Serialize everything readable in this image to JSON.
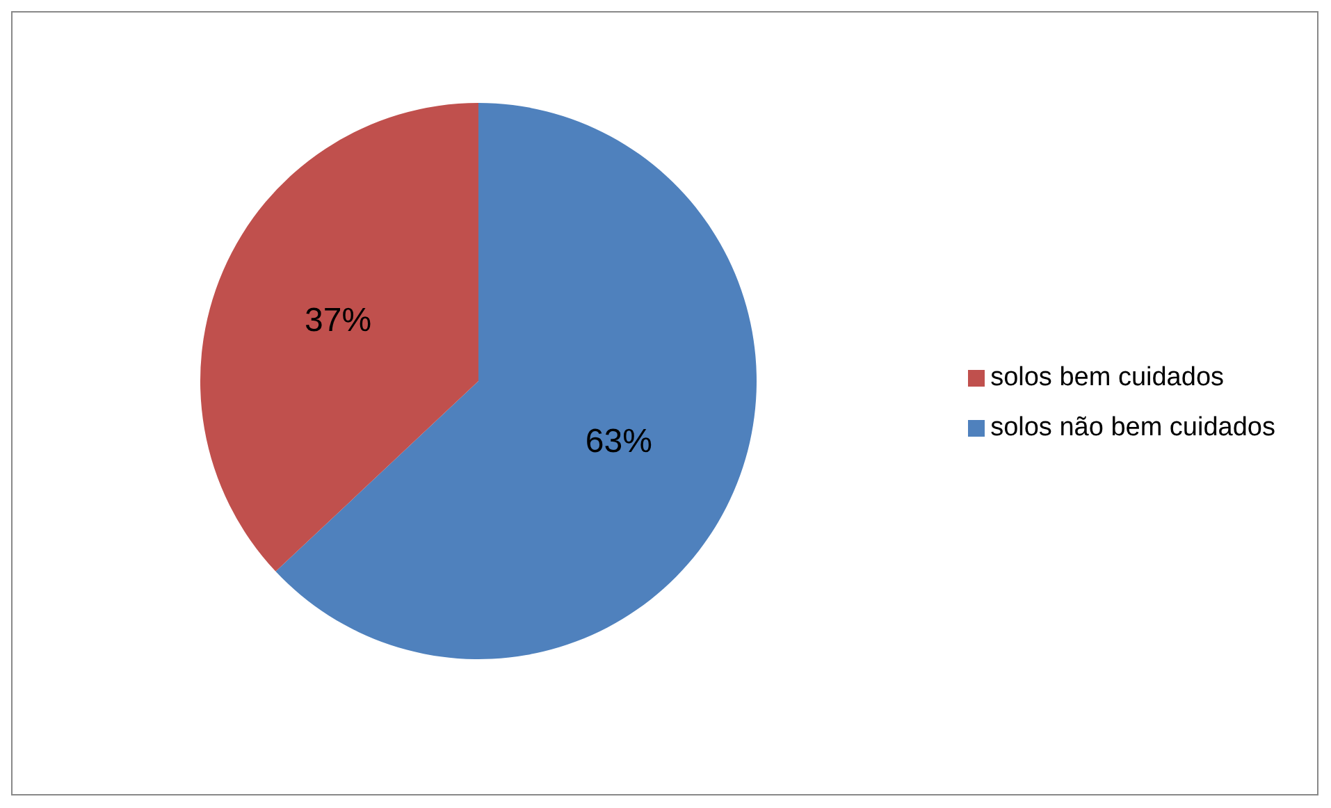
{
  "chart_data": {
    "type": "pie",
    "categories": [
      "solos não bem cuidados",
      "solos bem cuidados"
    ],
    "values": [
      63,
      37
    ],
    "colors": [
      "#4f81bd",
      "#c0504d"
    ],
    "value_labels": [
      "63%",
      "37%"
    ],
    "legend": "right"
  }
}
